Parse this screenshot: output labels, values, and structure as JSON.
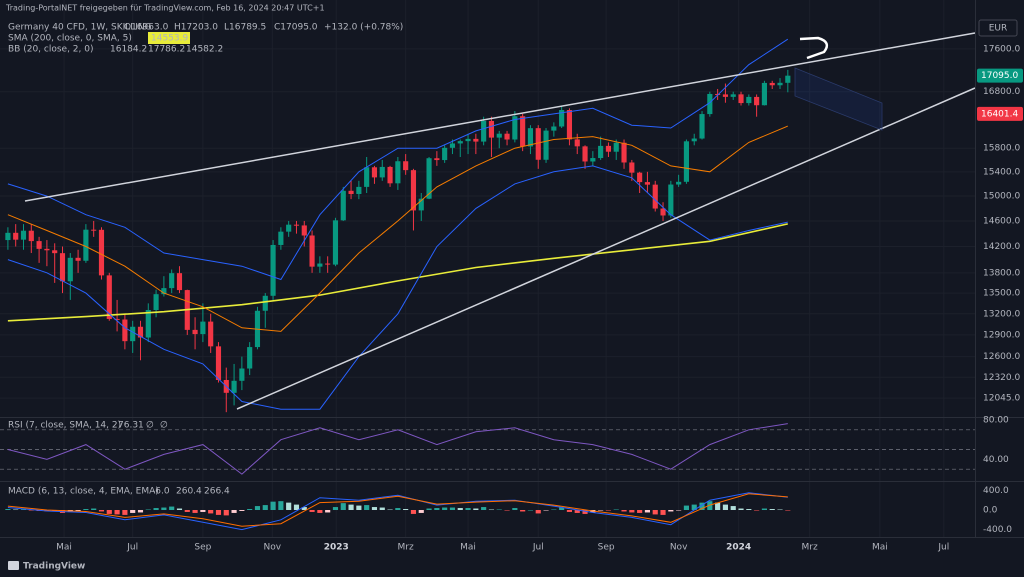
{
  "attribution": "Trading-PortalNET freigegeben für TradingView.com, Feb 16, 2024 20:47 UTC+1",
  "footer": "TradingView",
  "chart_data": [
    {
      "type": "candlestick",
      "title": "Germany 40 CFD, 1W, SKILLING",
      "ohlc": [
        "O16963.0",
        "H17203.0",
        "L16789.5",
        "C17095.0",
        "+132.0 (+0.78%)"
      ],
      "currency": "EUR",
      "log_scale": true,
      "grid": true,
      "up_color": "#089981",
      "down_color": "#f23645",
      "xlim": [
        -0.5,
        124
      ],
      "ylim": [
        11800,
        18200
      ],
      "xticks": [
        {
          "value": 7.2,
          "label": "Mai"
        },
        {
          "value": 16,
          "label": "Jul"
        },
        {
          "value": 25,
          "label": "Sep"
        },
        {
          "value": 33.9,
          "label": "Nov"
        },
        {
          "value": 42.1,
          "label": "2023"
        },
        {
          "value": 51,
          "label": "Mrz"
        },
        {
          "value": 59,
          "label": "Mai"
        },
        {
          "value": 68,
          "label": "Jul"
        },
        {
          "value": 76.7,
          "label": "Sep"
        },
        {
          "value": 86,
          "label": "Nov"
        },
        {
          "value": 93.7,
          "label": "2024"
        },
        {
          "value": 102.8,
          "label": "Mrz"
        },
        {
          "value": 111.8,
          "label": "Mai"
        },
        {
          "value": 120,
          "label": "Jul"
        }
      ],
      "yticks": [
        {
          "value": 17600,
          "label": "17600.0"
        },
        {
          "value": 16800,
          "label": "16800.0"
        },
        {
          "value": 15800,
          "label": "15800.0"
        },
        {
          "value": 15400,
          "label": "15400.0"
        },
        {
          "value": 15000,
          "label": "15000.0"
        },
        {
          "value": 14600,
          "label": "14600.0"
        },
        {
          "value": 14200,
          "label": "14200.0"
        },
        {
          "value": 13800,
          "label": "13800.0"
        },
        {
          "value": 13500,
          "label": "13500.0"
        },
        {
          "value": 13200,
          "label": "13200.0"
        },
        {
          "value": 12900,
          "label": "12900.0"
        },
        {
          "value": 12600,
          "label": "12600.0"
        },
        {
          "value": 12320,
          "label": "12320.0"
        },
        {
          "value": 12045,
          "label": "12045.0"
        }
      ],
      "price_tags": [
        {
          "value": 17095,
          "label": "17095.0",
          "color": "#089981"
        },
        {
          "value": 16401.4,
          "label": "16401.4",
          "color": "#f23645"
        }
      ],
      "open": [
        14300,
        14413,
        14306,
        14446,
        14284,
        14164,
        14142,
        14098,
        13674,
        14027,
        13982,
        14462,
        14460,
        13762,
        13126,
        13118,
        12813,
        13015,
        12864,
        13254,
        13484,
        13573,
        13795,
        13544,
        12971,
        12912,
        13088,
        12741,
        12284,
        12114,
        12273,
        12438,
        12731,
        13243,
        13460,
        14224,
        14431,
        14541,
        14529,
        14371,
        13893,
        13940,
        13924,
        14610,
        15086,
        15033,
        15150,
        15476,
        15307,
        15482,
        15209,
        15578,
        15428,
        14768,
        14957,
        15629,
        15598,
        15807,
        15882,
        15922,
        15961,
        15914,
        16275,
        15983,
        16051,
        15950,
        16358,
        15830,
        16148,
        15603,
        16105,
        16177,
        16469,
        15952,
        15832,
        15574,
        15632,
        15840,
        15740,
        15894,
        15557,
        15386,
        15229,
        15187,
        14798,
        14687,
        15189,
        15234,
        15919,
        15967,
        16397,
        16759,
        16751,
        16706,
        16752,
        16594,
        16705,
        16555,
        16961,
        16918,
        16963
      ],
      "high": [
        14500,
        14550,
        14550,
        14550,
        14350,
        14300,
        14250,
        14200,
        14100,
        14150,
        14550,
        14600,
        14500,
        13800,
        13400,
        13200,
        13100,
        13100,
        13350,
        13550,
        13750,
        13850,
        13900,
        13550,
        13150,
        13350,
        13200,
        12800,
        12450,
        12500,
        12600,
        12800,
        13300,
        13500,
        14300,
        14500,
        14600,
        14600,
        14600,
        14450,
        14050,
        14050,
        14650,
        15150,
        15250,
        15250,
        15650,
        15500,
        15600,
        15500,
        15650,
        15700,
        15450,
        15050,
        15650,
        15750,
        15850,
        15950,
        15950,
        16050,
        16050,
        16350,
        16350,
        16100,
        16100,
        16450,
        16400,
        16200,
        16200,
        16150,
        16250,
        16550,
        16500,
        16050,
        15850,
        15750,
        16000,
        15900,
        15950,
        15950,
        15600,
        15400,
        15400,
        15250,
        14900,
        15250,
        15350,
        15950,
        16050,
        16450,
        16800,
        16850,
        16950,
        16800,
        16800,
        16750,
        16750,
        17000,
        17000,
        17050,
        17203
      ],
      "low": [
        14150,
        14200,
        14150,
        14100,
        13950,
        13900,
        13650,
        13500,
        13400,
        13800,
        13950,
        14350,
        13700,
        13100,
        12950,
        12700,
        12650,
        12550,
        12800,
        13150,
        13450,
        13500,
        13500,
        12900,
        12700,
        12800,
        12650,
        12250,
        11862,
        11950,
        12150,
        12350,
        12700,
        13000,
        13400,
        14150,
        14350,
        14400,
        14200,
        13800,
        13800,
        13800,
        13900,
        14600,
        14950,
        14950,
        15050,
        15200,
        15250,
        15150,
        15100,
        15350,
        14450,
        14600,
        14950,
        15500,
        15550,
        15700,
        15650,
        15700,
        15700,
        15850,
        15650,
        15800,
        15850,
        15900,
        15750,
        15700,
        15450,
        15550,
        16000,
        16150,
        15850,
        15700,
        15450,
        15500,
        15600,
        15650,
        15600,
        15450,
        15250,
        15050,
        15050,
        14750,
        14600,
        14650,
        15150,
        15200,
        15850,
        15950,
        16350,
        16650,
        16600,
        16650,
        16550,
        16550,
        16350,
        16550,
        16850,
        16850,
        16789.5
      ],
      "close": [
        14413,
        14306,
        14446,
        14284,
        14164,
        14142,
        14098,
        13674,
        14027,
        13982,
        14462,
        14460,
        13762,
        13126,
        13118,
        12813,
        13015,
        12864,
        13254,
        13484,
        13573,
        13795,
        13544,
        12971,
        12912,
        13088,
        12741,
        12284,
        12114,
        12273,
        12438,
        12731,
        13243,
        13460,
        14224,
        14431,
        14541,
        14529,
        14371,
        13893,
        13940,
        13924,
        14610,
        15086,
        15033,
        15150,
        15476,
        15307,
        15482,
        15209,
        15578,
        15428,
        14768,
        14957,
        15629,
        15598,
        15807,
        15882,
        15922,
        15961,
        15914,
        16275,
        15983,
        16051,
        15950,
        16358,
        15830,
        16148,
        15603,
        16105,
        16177,
        16469,
        15952,
        15832,
        15574,
        15632,
        15840,
        15740,
        15894,
        15557,
        15386,
        15229,
        15187,
        14798,
        14687,
        15189,
        15234,
        15919,
        15967,
        16397,
        16759,
        16751,
        16706,
        16752,
        16594,
        16705,
        16555,
        16961,
        16918,
        16963,
        17095
      ],
      "series": [
        {
          "name": "SMA (200, close, 0, SMA, 5)",
          "color": "#e8ec3a",
          "x": [
            0,
            10,
            20,
            30,
            40,
            50,
            60,
            70,
            80,
            90,
            100
          ],
          "values": [
            13100,
            13160,
            13230,
            13330,
            13470,
            13680,
            13880,
            14020,
            14150,
            14280,
            14553.9
          ]
        },
        {
          "name": "BB (20, close, 2, 0)",
          "color": "#f57c00",
          "x": [
            0,
            5,
            10,
            15,
            20,
            25,
            30,
            35,
            40,
            45,
            50,
            55,
            60,
            65,
            70,
            75,
            80,
            85,
            90,
            95,
            100
          ],
          "values": [
            14700,
            14450,
            14200,
            13900,
            13500,
            13300,
            13000,
            12950,
            13500,
            14100,
            14600,
            15150,
            15500,
            15800,
            15950,
            16000,
            15850,
            15500,
            15400,
            15900,
            16184.2
          ]
        },
        {
          "color": "#2962ff",
          "x": [
            0,
            5,
            10,
            15,
            20,
            25,
            30,
            35,
            40,
            45,
            50,
            55,
            60,
            65,
            70,
            75,
            80,
            85,
            90,
            95,
            100
          ],
          "values": [
            15200,
            15000,
            14700,
            14500,
            14100,
            14000,
            13900,
            13700,
            14700,
            15400,
            15800,
            15800,
            16100,
            16300,
            16400,
            16500,
            16200,
            16150,
            16600,
            17300,
            17786.2
          ]
        },
        {
          "color": "#2962ff",
          "x": [
            0,
            5,
            10,
            15,
            20,
            25,
            30,
            35,
            40,
            45,
            50,
            55,
            60,
            65,
            70,
            75,
            80,
            85,
            90,
            95,
            100
          ],
          "values": [
            14000,
            13800,
            13500,
            13000,
            12700,
            12500,
            12000,
            11900,
            11900,
            12600,
            13200,
            14200,
            14800,
            15200,
            15400,
            15500,
            15300,
            14700,
            14300,
            14450,
            14582.2
          ]
        }
      ]
    },
    {
      "type": "line",
      "title": "RSI (7, close, SMA, 14, 2)",
      "extra": [
        "∅",
        "∅"
      ],
      "ylim": [
        18,
        82
      ],
      "yticks": [
        {
          "value": 40,
          "label": "40.00"
        },
        {
          "value": 80,
          "label": "80.00"
        }
      ],
      "levels": [
        30,
        50,
        70
      ],
      "series": [
        {
          "color": "#7e57c2",
          "x": [
            0,
            5,
            10,
            15,
            20,
            25,
            30,
            35,
            40,
            45,
            50,
            55,
            60,
            65,
            70,
            75,
            80,
            85,
            90,
            95,
            100
          ],
          "values": [
            50,
            40,
            55,
            30,
            45,
            55,
            25,
            60,
            72,
            60,
            70,
            55,
            68,
            72,
            60,
            55,
            45,
            30,
            55,
            70,
            76.31
          ]
        }
      ]
    },
    {
      "type": "macd",
      "title": "MACD (6, 13, close, 4, EMA, EMA)",
      "legend_values": [
        "-6.0",
        "260.4",
        "266.4"
      ],
      "ylim": [
        -550,
        550
      ],
      "yticks": [
        {
          "value": 400,
          "label": "400.0"
        },
        {
          "value": 0,
          "label": "0.0"
        },
        {
          "value": -400,
          "label": "-400.0"
        }
      ],
      "histogram_colors": [
        "#26a69a",
        "#b2dfdb",
        "#ffcdd2",
        "#ff5252"
      ],
      "histogram": [
        20,
        10,
        15,
        -5,
        -20,
        -25,
        -30,
        -60,
        -40,
        -30,
        20,
        30,
        -30,
        -80,
        -90,
        -100,
        -60,
        -50,
        10,
        40,
        50,
        70,
        30,
        -40,
        -60,
        -40,
        -70,
        -100,
        -110,
        -60,
        -20,
        20,
        80,
        100,
        170,
        180,
        150,
        110,
        60,
        -40,
        -60,
        -50,
        60,
        140,
        110,
        90,
        100,
        60,
        50,
        10,
        40,
        20,
        -80,
        -60,
        30,
        40,
        50,
        50,
        40,
        40,
        30,
        60,
        10,
        10,
        -10,
        40,
        -30,
        0,
        -70,
        -10,
        10,
        50,
        -40,
        -60,
        -80,
        -50,
        -10,
        -10,
        10,
        -30,
        -50,
        -60,
        -50,
        -90,
        -100,
        -30,
        -10,
        90,
        110,
        150,
        180,
        150,
        110,
        80,
        30,
        20,
        -10,
        30,
        20,
        10,
        -6
      ],
      "series": [
        {
          "color": "#2962ff",
          "x": [
            0,
            5,
            10,
            15,
            20,
            25,
            30,
            35,
            40,
            45,
            50,
            55,
            60,
            65,
            70,
            75,
            80,
            85,
            90,
            95,
            100
          ],
          "values": [
            50,
            -20,
            -50,
            -200,
            -100,
            -250,
            -400,
            -200,
            250,
            200,
            300,
            100,
            180,
            200,
            80,
            -50,
            -150,
            -300,
            200,
            350,
            260.4
          ]
        },
        {
          "color": "#ff6d00",
          "x": [
            0,
            5,
            10,
            15,
            20,
            25,
            30,
            35,
            40,
            45,
            50,
            55,
            60,
            65,
            70,
            75,
            80,
            85,
            90,
            95,
            100
          ],
          "values": [
            80,
            0,
            -30,
            -150,
            -80,
            -180,
            -330,
            -280,
            150,
            180,
            280,
            120,
            160,
            190,
            100,
            -20,
            -120,
            -250,
            100,
            330,
            266.4
          ]
        }
      ]
    }
  ]
}
